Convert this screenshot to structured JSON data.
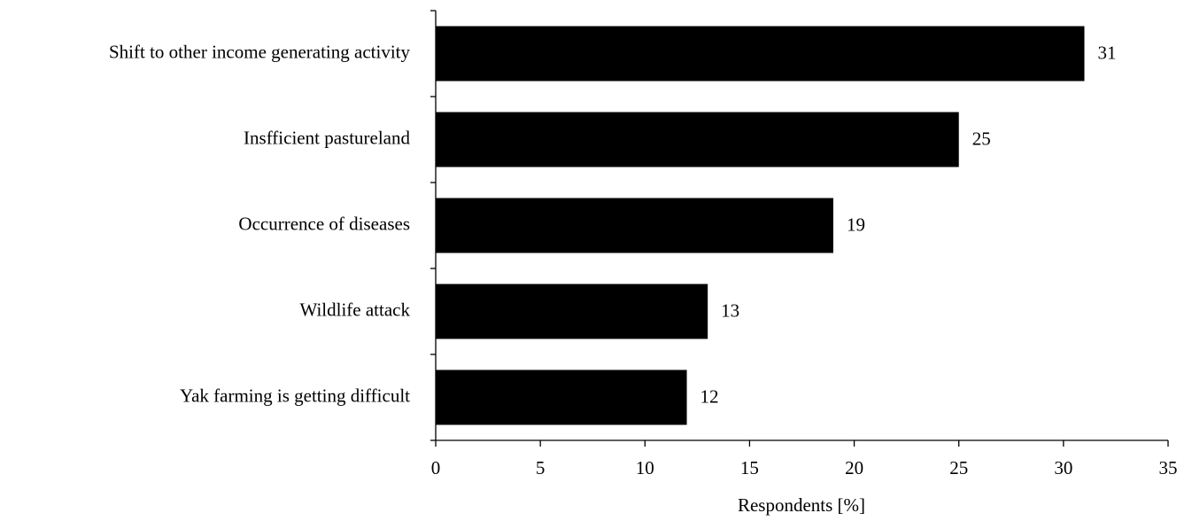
{
  "chart_data": {
    "type": "barh",
    "x_label": "Respondents [%]",
    "categories": [
      "Shift to other income generating activity",
      "Insfficient pastureland",
      "Occurrence of diseases",
      "Wildlife attack",
      "Yak farming is getting difficult"
    ],
    "values": [
      31,
      25,
      19,
      13,
      12
    ],
    "color": "#000000",
    "xlim": [
      0,
      35
    ],
    "xticks": [
      0,
      5,
      10,
      15,
      20,
      25,
      30,
      35
    ],
    "grid": false
  }
}
